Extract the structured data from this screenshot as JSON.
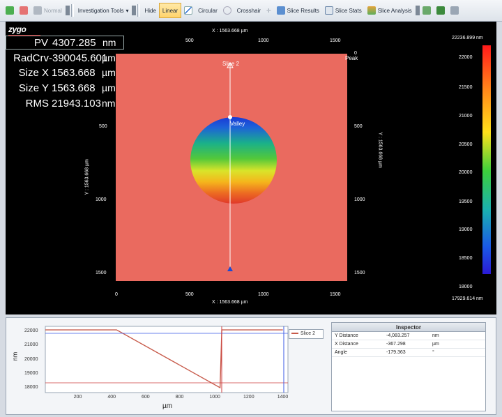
{
  "toolbar": {
    "normal_label": "Normal",
    "investigation_label": "Investigation Tools",
    "hide_label": "Hide",
    "linear_label": "Linear",
    "circular_label": "Circular",
    "crosshair_label": "Crosshair",
    "slice_results_label": "Slice Results",
    "slice_stats_label": "Slice Stats",
    "slice_analysis_label": "Slice Analysis"
  },
  "logo_text": "zygo",
  "stats": [
    {
      "label": "PV",
      "value": "4307.285",
      "unit": "nm"
    },
    {
      "label": "RadCrv",
      "value": "-390045.601",
      "unit": "µm"
    },
    {
      "label": "Size X",
      "value": "1563.668",
      "unit": "µm"
    },
    {
      "label": "Size Y",
      "value": "1563.668",
      "unit": "µm"
    },
    {
      "label": "RMS",
      "value": "21943.103",
      "unit": "nm"
    }
  ],
  "map": {
    "x_axis_title": "X : 1563.668 µm",
    "y_axis_title": "Y : 1563.668 µm",
    "x_ticks": [
      "0",
      "500",
      "1000",
      "1500"
    ],
    "y_ticks": [
      "500",
      "1000",
      "1500"
    ],
    "right_ticks": [
      "0",
      "500",
      "1000",
      "1500"
    ],
    "slice_label": "Slice 2",
    "valley_label": "Valley",
    "peak_label": "Peak"
  },
  "colorbar": {
    "max_label": "22236.899 nm",
    "min_label": "17929.614 nm",
    "ticks": [
      "22000",
      "21500",
      "21000",
      "20500",
      "20000",
      "19500",
      "19000",
      "18500",
      "18000"
    ]
  },
  "profile": {
    "y_ticks": [
      "22000",
      "21000",
      "20000",
      "19000",
      "18000"
    ],
    "x_ticks": [
      "200",
      "400",
      "600",
      "800",
      "1000",
      "1200",
      "1400"
    ],
    "ylabel": "nm",
    "xlabel": "µm",
    "legend_label": "Slice 2"
  },
  "inspector": {
    "title": "Inspector",
    "rows": [
      {
        "name": "Y Distance",
        "value": "-4,083.257",
        "unit": "nm"
      },
      {
        "name": "X Distance",
        "value": "-367.298",
        "unit": "µm"
      },
      {
        "name": "Angle",
        "value": "-179.363",
        "unit": "°"
      }
    ]
  }
}
